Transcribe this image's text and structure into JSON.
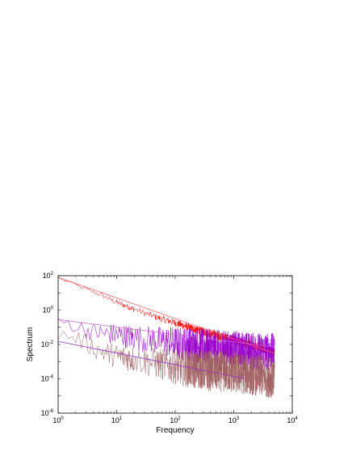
{
  "chart_data": {
    "type": "line",
    "title": "",
    "xlabel": "Frequency",
    "ylabel": "Spectrum",
    "x_scale": "log",
    "y_scale": "log",
    "xlim": [
      1,
      10000
    ],
    "ylim": [
      1e-06,
      100
    ],
    "grid": false,
    "legend": "none",
    "x_ticks": [
      {
        "value": 1,
        "base": "10",
        "exp": "0"
      },
      {
        "value": 10,
        "base": "10",
        "exp": "1"
      },
      {
        "value": 100,
        "base": "10",
        "exp": "2"
      },
      {
        "value": 1000,
        "base": "10",
        "exp": "3"
      },
      {
        "value": 10000,
        "base": "10",
        "exp": "4"
      }
    ],
    "y_ticks": [
      {
        "value": 1e-06,
        "base": "10",
        "exp": "-6"
      },
      {
        "value": 0.0001,
        "base": "10",
        "exp": "-4"
      },
      {
        "value": 0.01,
        "base": "10",
        "exp": "-2"
      },
      {
        "value": 1,
        "base": "10",
        "exp": "0"
      },
      {
        "value": 100,
        "base": "10",
        "exp": "2"
      }
    ],
    "series": [
      {
        "color": "#ff0000",
        "kind": "spectrum",
        "x": [
          1,
          2,
          3,
          5,
          10,
          20,
          50,
          100,
          200,
          500,
          1000,
          2000,
          5000
        ],
        "y": [
          80,
          30,
          17,
          9,
          3,
          1.2,
          0.4,
          0.2,
          0.09,
          0.04,
          0.02,
          0.01,
          0.004
        ]
      },
      {
        "color": "#9900cc",
        "kind": "spectrum",
        "x": [
          1,
          2,
          3,
          5,
          10,
          20,
          50,
          100,
          200,
          500,
          1000,
          2000,
          5000
        ],
        "y": [
          0.3,
          0.15,
          0.09,
          0.06,
          0.05,
          0.035,
          0.025,
          0.02,
          0.015,
          0.01,
          0.008,
          0.007,
          0.006
        ]
      },
      {
        "color": "#a06060",
        "kind": "spectrum",
        "x": [
          1,
          2,
          3,
          5,
          10,
          20,
          50,
          100,
          200,
          500,
          1000,
          2000,
          5000
        ],
        "y": [
          0.05,
          0.03,
          0.015,
          0.006,
          0.003,
          0.002,
          0.0012,
          0.0008,
          0.0006,
          0.0005,
          0.0004,
          0.0003,
          0.0002
        ]
      },
      {
        "color": "#ff6666",
        "kind": "fit",
        "x": [
          1,
          5000
        ],
        "y": [
          80,
          0.003
        ]
      },
      {
        "color": "#cc66cc",
        "kind": "fit",
        "x": [
          1,
          5000
        ],
        "y": [
          0.28,
          0.007
        ]
      },
      {
        "color": "#9933cc",
        "kind": "fit",
        "x": [
          1,
          1600
        ],
        "y": [
          0.015,
          0.0001
        ]
      }
    ]
  }
}
